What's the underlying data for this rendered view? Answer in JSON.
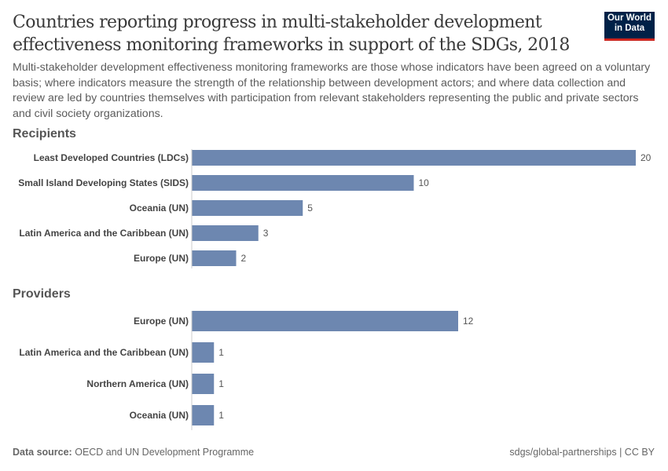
{
  "header": {
    "title": "Countries reporting progress in multi-stakeholder development effectiveness monitoring frameworks in support of the SDGs, 2018",
    "subtitle": "Multi-stakeholder development effectiveness monitoring frameworks are those whose indicators have been agreed on a voluntary basis; where indicators measure the strength of the relationship between development actors; and where data collection and review are led by countries themselves with participation from relevant stakeholders representing the public and private sectors and civil society organizations.",
    "logo_line1": "Our World",
    "logo_line2": "in Data"
  },
  "chart_data": [
    {
      "type": "bar",
      "orientation": "horizontal",
      "title": "Recipients",
      "categories": [
        "Least Developed Countries (LDCs)",
        "Small Island Developing States (SIDS)",
        "Oceania (UN)",
        "Latin America and the Caribbean (UN)",
        "Europe (UN)"
      ],
      "values": [
        20,
        10,
        5,
        3,
        2
      ],
      "xlim": [
        0,
        20
      ],
      "color": "#6d87b0"
    },
    {
      "type": "bar",
      "orientation": "horizontal",
      "title": "Providers",
      "categories": [
        "Europe (UN)",
        "Latin America and the Caribbean (UN)",
        "Northern America (UN)",
        "Oceania (UN)"
      ],
      "values": [
        12,
        1,
        1,
        1
      ],
      "xlim": [
        0,
        20
      ],
      "color": "#6d87b0"
    }
  ],
  "footer": {
    "source_label": "Data source:",
    "source_text": "OECD and UN Development Programme",
    "right": "sdgs/global-partnerships | CC BY"
  }
}
